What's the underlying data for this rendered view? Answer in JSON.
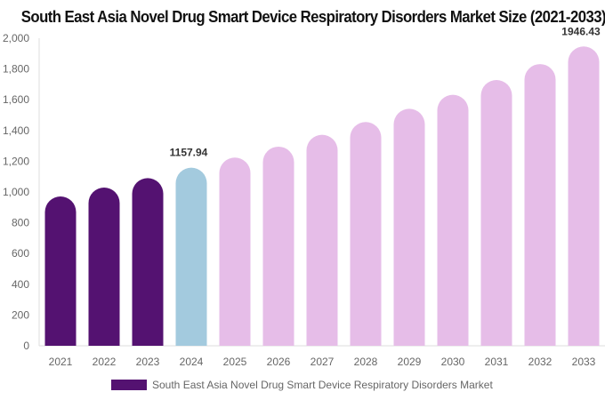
{
  "chart_data": {
    "type": "bar",
    "title": "South East Asia Novel Drug Smart Device Respiratory Disorders Market Size (2021-2033)",
    "categories": [
      "2021",
      "2022",
      "2023",
      "2024",
      "2025",
      "2026",
      "2027",
      "2028",
      "2029",
      "2030",
      "2031",
      "2032",
      "2033"
    ],
    "series": [
      {
        "name": "South East Asia Novel Drug Smart Device Respiratory Disorders Market",
        "values": [
          971,
          1029,
          1090,
          1157.94,
          1224,
          1295,
          1372,
          1455,
          1541,
          1632,
          1728,
          1832,
          1946.43
        ]
      }
    ],
    "data_labels": {
      "2024": "1157.94",
      "2033": "1946.43"
    },
    "ylim": [
      0,
      2000
    ],
    "yticks": [
      "0",
      "200",
      "400",
      "600",
      "800",
      "1,000",
      "1,200",
      "1,400",
      "1,600",
      "1,800",
      "2,000"
    ],
    "xlabel": "",
    "ylabel": "",
    "grid": false,
    "legend": "bottom",
    "colors": {
      "historical": "#541271",
      "current": "#a3cade",
      "forecast": "#e6bde8"
    }
  }
}
